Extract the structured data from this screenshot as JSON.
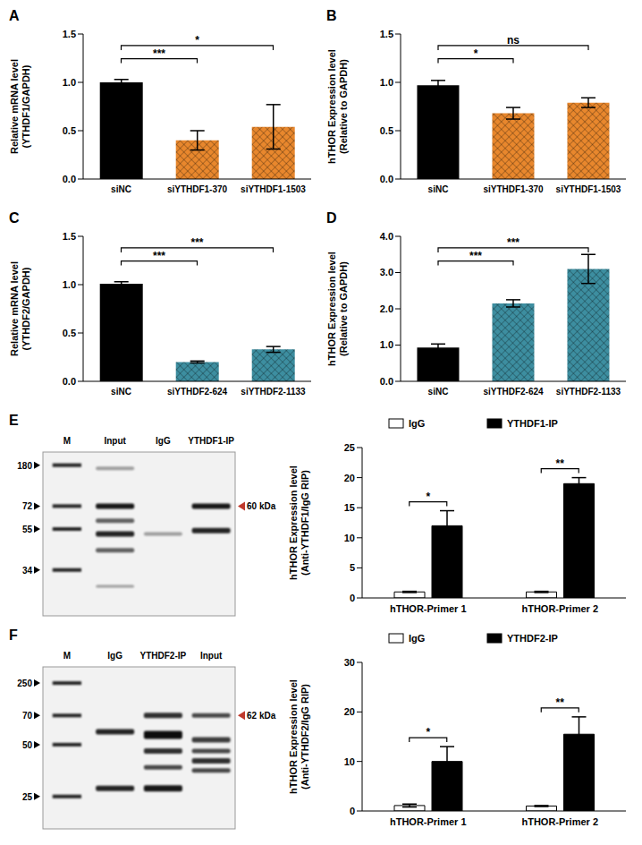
{
  "chart_data": [
    {
      "panel": "A",
      "type": "bar",
      "y_label": [
        "Relative mRNA level",
        "(YTHDF1/GAPDH)"
      ],
      "categories": [
        "siNC",
        "siYTHDF1-370",
        "siYTHDF1-1503"
      ],
      "values": [
        1.0,
        0.4,
        0.54
      ],
      "errors": [
        0.03,
        0.1,
        0.23
      ],
      "colors": [
        "#000000",
        "#e8872d",
        "#e8872d"
      ],
      "ylim": [
        0,
        1.5
      ],
      "yticks": [
        {
          "value": 0,
          "label": "0.0"
        },
        0.5,
        {
          "value": 1,
          "label": "1.0"
        },
        1.5
      ],
      "significance": [
        {
          "from": 0,
          "to": 1,
          "label": "***"
        },
        {
          "from": 0,
          "to": 2,
          "label": "*"
        }
      ]
    },
    {
      "panel": "B",
      "type": "bar",
      "y_label": [
        "hTHOR Expression level",
        "(Relative to GAPDH)"
      ],
      "categories": [
        "siNC",
        "siYTHDF1-370",
        "siYTHDF1-1503"
      ],
      "values": [
        0.97,
        0.68,
        0.79
      ],
      "errors": [
        0.05,
        0.06,
        0.05
      ],
      "colors": [
        "#000000",
        "#e8872d",
        "#e8872d"
      ],
      "ylim": [
        0,
        1.5
      ],
      "yticks": [
        {
          "value": 0,
          "label": "0.0"
        },
        0.5,
        {
          "value": 1,
          "label": "1.0"
        },
        1.5
      ],
      "significance": [
        {
          "from": 0,
          "to": 1,
          "label": "*"
        },
        {
          "from": 0,
          "to": 2,
          "label": "ns"
        }
      ]
    },
    {
      "panel": "C",
      "type": "bar",
      "y_label": [
        "Relative mRNA level",
        "(YTHDF2/GAPDH)"
      ],
      "categories": [
        "siNC",
        "siYTHDF2-624",
        "siYTHDF2-1133"
      ],
      "values": [
        1.01,
        0.2,
        0.33
      ],
      "errors": [
        0.02,
        0.01,
        0.03
      ],
      "colors": [
        "#000000",
        "#3d8ea0",
        "#3d8ea0"
      ],
      "ylim": [
        0,
        1.5
      ],
      "yticks": [
        {
          "value": 0,
          "label": "0.0"
        },
        0.5,
        {
          "value": 1,
          "label": "1.0"
        },
        1.5
      ],
      "significance": [
        {
          "from": 0,
          "to": 1,
          "label": "***"
        },
        {
          "from": 0,
          "to": 2,
          "label": "***"
        }
      ]
    },
    {
      "panel": "D",
      "type": "bar",
      "y_label": [
        "hTHOR Expression level",
        "(Relative to GAPDH)"
      ],
      "categories": [
        "siNC",
        "siYTHDF2-624",
        "siYTHDF2-1133"
      ],
      "values": [
        0.93,
        2.15,
        3.1
      ],
      "errors": [
        0.1,
        0.1,
        0.4
      ],
      "colors": [
        "#000000",
        "#3d8ea0",
        "#3d8ea0"
      ],
      "ylim": [
        0,
        4
      ],
      "yticks": [
        {
          "value": 0,
          "label": "0.0"
        },
        {
          "value": 1,
          "label": "1.0"
        },
        {
          "value": 2,
          "label": "2.0"
        },
        {
          "value": 3,
          "label": "3.0"
        },
        {
          "value": 4,
          "label": "4.0"
        }
      ],
      "significance": [
        {
          "from": 0,
          "to": 1,
          "label": "***"
        },
        {
          "from": 0,
          "to": 2,
          "label": "***"
        }
      ]
    },
    {
      "type": "bar",
      "y_label": [
        "hTHOR Expression level",
        "(Anti-YTHDF1/IgG RIP)"
      ],
      "categories": [
        "hTHOR-Primer 1",
        "hTHOR-Primer 2"
      ],
      "series": [
        {
          "name": "IgG",
          "color": "#ffffff",
          "values": [
            1,
            1
          ],
          "errors": [
            0.1,
            0.1
          ]
        },
        {
          "name": "YTHDF1-IP",
          "color": "#000000",
          "values": [
            12,
            19
          ],
          "errors": [
            2.5,
            1.0
          ]
        }
      ],
      "ylim": [
        0,
        25
      ],
      "yticks": [
        0,
        5,
        10,
        15,
        20,
        25
      ],
      "legend": "top",
      "significance": [
        {
          "category": 0,
          "label": "*"
        },
        {
          "category": 1,
          "label": "**"
        }
      ]
    },
    {
      "type": "bar",
      "y_label": [
        "hTHOR Expression level",
        "(Anti-YTHDF2/IgG RIP)"
      ],
      "categories": [
        "hTHOR-Primer 1",
        "hTHOR-Primer 2"
      ],
      "series": [
        {
          "name": "IgG",
          "color": "#ffffff",
          "values": [
            1.1,
            1
          ],
          "errors": [
            0.3,
            0.1
          ]
        },
        {
          "name": "YTHDF2-IP",
          "color": "#000000",
          "values": [
            10,
            15.5
          ],
          "errors": [
            3,
            3.5
          ]
        }
      ],
      "ylim": [
        0,
        30
      ],
      "yticks": [
        0,
        10,
        20,
        30
      ],
      "legend": "top",
      "significance": [
        {
          "category": 0,
          "label": "*"
        },
        {
          "category": 1,
          "label": "**"
        }
      ]
    }
  ],
  "blots": [
    {
      "panel": "E",
      "lanes": [
        "M",
        "Input",
        "IgG",
        "YTHDF1-IP"
      ],
      "markers": [
        180,
        72,
        55,
        34
      ],
      "band_label": "60 kDa"
    },
    {
      "panel": "F",
      "lanes": [
        "M",
        "IgG",
        "YTHDF2-IP",
        "Input"
      ],
      "markers": [
        250,
        70,
        50,
        25
      ],
      "band_label": "62 kDa"
    }
  ]
}
